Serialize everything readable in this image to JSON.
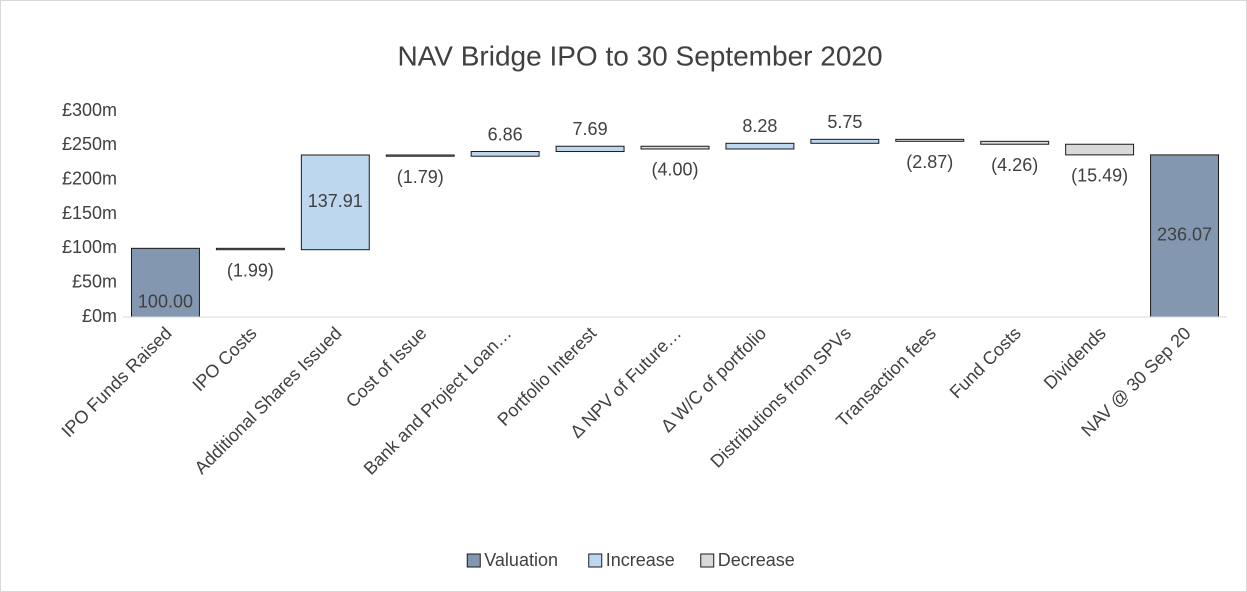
{
  "chart_data": {
    "type": "waterfall",
    "title": "NAV Bridge IPO to 30 September 2020",
    "categories": [
      "IPO Funds Raised",
      "IPO Costs",
      "Additional Shares Issued",
      "Cost of Issue",
      "Bank and Project Loan…",
      "Portfolio Interest",
      "Δ NPV of Future…",
      "Δ W/C of portfolio",
      "Distributions from SPVs",
      "Transaction fees",
      "Fund Costs",
      "Dividends",
      "NAV @ 30 Sep 20"
    ],
    "series": [
      {
        "name": "Valuation",
        "color": "#8497b0",
        "values": [
          100.0,
          null,
          null,
          null,
          null,
          null,
          null,
          null,
          null,
          null,
          null,
          null,
          236.07
        ],
        "value_labels": [
          "100.00",
          null,
          null,
          null,
          null,
          null,
          null,
          null,
          null,
          null,
          null,
          null,
          "236.07"
        ]
      },
      {
        "name": "Increase",
        "color": "#bdd7ee",
        "values": [
          null,
          null,
          137.91,
          null,
          6.86,
          7.69,
          null,
          8.28,
          5.75,
          null,
          null,
          null,
          null
        ],
        "value_labels": [
          null,
          null,
          "137.91",
          null,
          "6.86",
          "7.69",
          null,
          "8.28",
          "5.75",
          null,
          null,
          null,
          null
        ]
      },
      {
        "name": "Decrease",
        "color": "#d9d9d9",
        "values": [
          null,
          -1.99,
          null,
          -1.79,
          null,
          null,
          -4.0,
          null,
          null,
          -2.87,
          -4.26,
          -15.49,
          null
        ],
        "value_labels": [
          null,
          "(1.99)",
          null,
          "(1.79)",
          null,
          null,
          "(4.00)",
          null,
          null,
          "(2.87)",
          "(4.26)",
          "(15.49)",
          null
        ]
      }
    ],
    "ylim": [
      0,
      300
    ],
    "yticks": [
      {
        "value": 0,
        "label": "£0m"
      },
      {
        "value": 50,
        "label": "£50m"
      },
      {
        "value": 100,
        "label": "£100m"
      },
      {
        "value": 150,
        "label": "£150m"
      },
      {
        "value": 200,
        "label": "£200m"
      },
      {
        "value": 250,
        "label": "£250m"
      },
      {
        "value": 300,
        "label": "£300m"
      }
    ],
    "grid": false,
    "legend": "bottom"
  }
}
